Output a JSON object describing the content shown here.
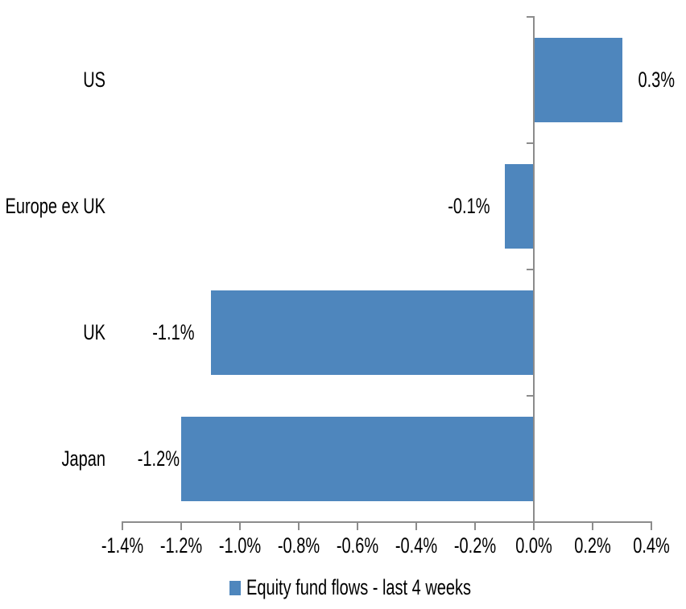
{
  "chart_data": {
    "type": "bar",
    "orientation": "horizontal",
    "title": "",
    "categories": [
      "US",
      "Europe ex UK",
      "UK",
      "Japan"
    ],
    "series": [
      {
        "name": "Equity fund flows - last 4 weeks",
        "values": [
          0.3,
          -0.1,
          -1.1,
          -1.2
        ],
        "data_labels": [
          "0.3%",
          "-0.1%",
          "-1.1%",
          "-1.2%"
        ],
        "color": "#4E86BD"
      }
    ],
    "xlabel": "",
    "ylabel": "",
    "xlim": [
      -1.4,
      0.4
    ],
    "x_tick_labels": [
      "-1.4%",
      "-1.2%",
      "-1.0%",
      "-0.8%",
      "-0.6%",
      "-0.4%",
      "-0.2%",
      "0.0%",
      "0.2%",
      "0.4%"
    ],
    "x_tick_values": [
      -1.4,
      -1.2,
      -1.0,
      -0.8,
      -0.6,
      -0.4,
      -0.2,
      0.0,
      0.2,
      0.4
    ],
    "grid": false,
    "legend_position": "bottom",
    "axis_color": "#8C8C8C",
    "text_color": "#000000",
    "background_color": "#FFFFFF"
  },
  "legend": {
    "label": "Equity fund flows - last 4 weeks",
    "swatch_color": "#4E86BD"
  }
}
